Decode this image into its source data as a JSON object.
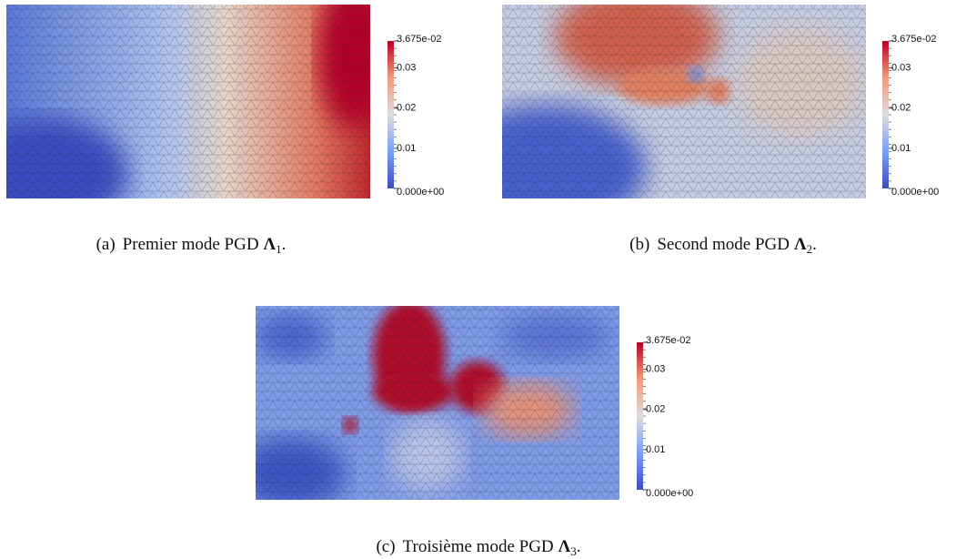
{
  "figures": [
    {
      "label": "(a)",
      "text": "Premier mode PGD",
      "symbol": "Λ",
      "subscript": "1",
      "end": ".",
      "colorbar": {
        "ticks": [
          {
            "value": 0.03675,
            "label": "3.675e-02"
          },
          0.03,
          0.02,
          0.01,
          {
            "value": 0,
            "label": "0.000e+00"
          }
        ]
      }
    },
    {
      "label": "(b)",
      "text": "Second mode PGD",
      "symbol": "Λ",
      "subscript": "2",
      "end": ".",
      "colorbar": {
        "ticks": [
          {
            "value": 0.03675,
            "label": "3.675e-02"
          },
          0.03,
          0.02,
          0.01,
          {
            "value": 0,
            "label": "0.000e+00"
          }
        ]
      }
    },
    {
      "label": "(c)",
      "text": "Troisième mode PGD",
      "symbol": "Λ",
      "subscript": "3",
      "end": ".",
      "colorbar": {
        "ticks": [
          {
            "value": 0.03675,
            "label": "3.675e-02"
          },
          0.03,
          0.02,
          0.01,
          {
            "value": 0,
            "label": "0.000e+00"
          }
        ]
      }
    }
  ]
}
